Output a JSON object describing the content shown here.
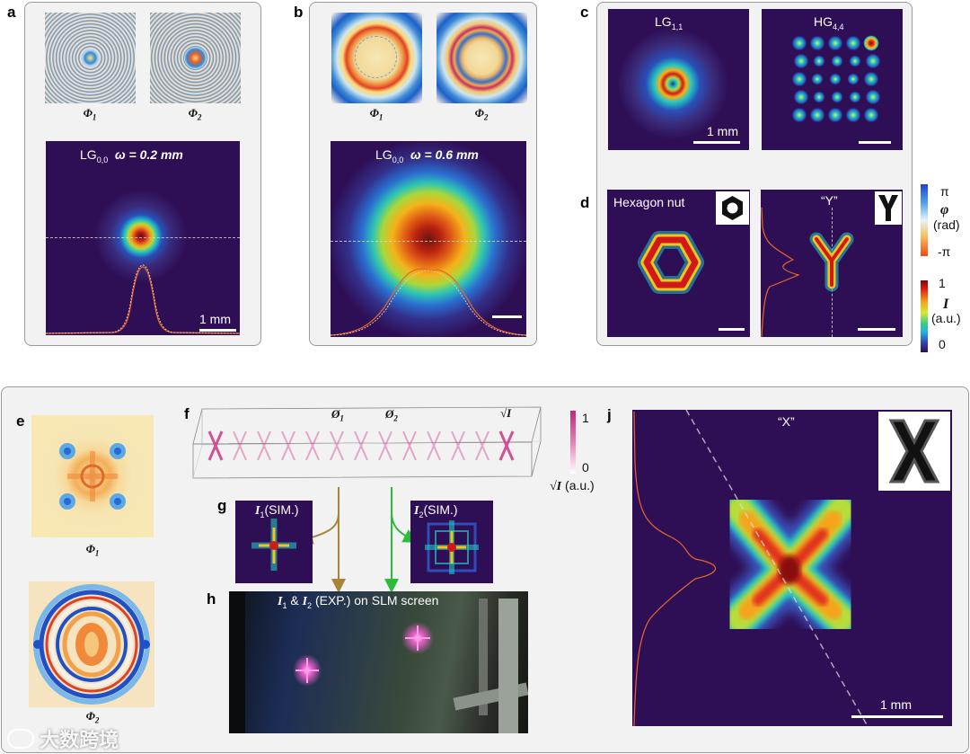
{
  "panels": {
    "a": {
      "label": "a",
      "phi1": "Φ",
      "phi1_sub": "1",
      "phi2": "Φ",
      "phi2_sub": "2",
      "beam_prefix": "LG",
      "beam_sub": "0,0",
      "omega_label": "ω = 0.2 mm",
      "scale_label": "1 mm"
    },
    "b": {
      "label": "b",
      "phi1": "Φ",
      "phi1_sub": "1",
      "phi2": "Φ",
      "phi2_sub": "2",
      "beam_prefix": "LG",
      "beam_sub": "0,0",
      "omega_label": "ω = 0.6 mm"
    },
    "c": {
      "label": "c",
      "left_prefix": "LG",
      "left_sub": "1,1",
      "right_prefix": "HG",
      "right_sub": "4,4",
      "scale_label": "1 mm"
    },
    "d": {
      "label": "d",
      "left_title": "Hexagon nut",
      "right_title": "“Y”"
    },
    "colorbars": {
      "phase_top": "π",
      "phase_symbol": "φ",
      "phase_unit": "(rad)",
      "phase_bottom": "-π",
      "int_top": "1",
      "int_symbol": "I",
      "int_unit": "(a.u.)",
      "int_bottom": "0"
    },
    "e": {
      "label": "e",
      "phi1": "Φ",
      "phi1_sub": "1",
      "phi2": "Φ",
      "phi2_sub": "2"
    },
    "f": {
      "label": "f",
      "plane1": "Ø",
      "plane1_sub": "1",
      "plane2": "Ø",
      "plane2_sub": "2",
      "sqrt_label": "√I",
      "cb_top": "1",
      "cb_bottom": "0",
      "cb_unit_sym": "√I",
      "cb_unit": "(a.u.)"
    },
    "g": {
      "label": "g",
      "left_sym": "I",
      "left_sub": "1",
      "left_txt": "(SIM.)",
      "right_sym": "I",
      "right_sub": "2",
      "right_txt": "(SIM.)"
    },
    "h": {
      "label": "h",
      "i1": "I",
      "i1_sub": "1",
      "amp": "&",
      "i2": "I",
      "i2_sub": "2",
      "rest": "(EXP.) on SLM screen"
    },
    "j": {
      "label": "j",
      "title": "“X”",
      "scale_label": "1 mm"
    }
  },
  "watermark": "大数跨境",
  "colors": {
    "panel_bg": "#f2f2f2",
    "panel_border": "#9a9a9a",
    "beam_bg": "#2e0e55",
    "profile_line": "#e8672a",
    "arrow_brown": "#a88436",
    "arrow_green": "#2dbb3a",
    "pink": "#d04890"
  }
}
